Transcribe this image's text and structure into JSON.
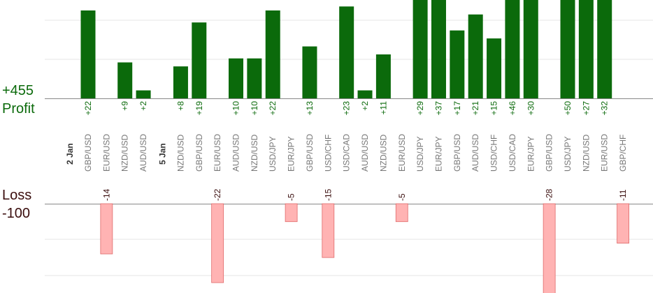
{
  "labels": {
    "profit_total": "+455",
    "profit": "Profit",
    "loss": "Loss",
    "loss_total": "-100"
  },
  "colors": {
    "profit_bar": "#0b6a0b",
    "profit_text": "#0b6a0b",
    "loss_bar_fill": "#ffb3b3",
    "loss_bar_stroke": "#e06a6a",
    "loss_text": "#3a0d0d",
    "axis": "#888888",
    "grid": "#e6e6e6"
  },
  "chart_data": {
    "type": "bar",
    "profit_ylim": [
      0,
      45
    ],
    "loss_ylim": [
      0,
      28
    ],
    "date_groups": [
      {
        "label": "2 Jan",
        "start_index": 0
      },
      {
        "label": "5 Jan",
        "start_index": 4
      }
    ],
    "trades": [
      {
        "pair": "GBP/USD",
        "value": 22
      },
      {
        "pair": "EUR/USD",
        "value": -14
      },
      {
        "pair": "NZD/USD",
        "value": 9
      },
      {
        "pair": "AUD/USD",
        "value": 2
      },
      {
        "pair": "NZD/USD",
        "value": 8
      },
      {
        "pair": "GBP/USD",
        "value": 19
      },
      {
        "pair": "EUR/USD",
        "value": -22
      },
      {
        "pair": "AUD/USD",
        "value": 10
      },
      {
        "pair": "NZD/USD",
        "value": 10
      },
      {
        "pair": "USD/JPY",
        "value": 22
      },
      {
        "pair": "EUR/JPY",
        "value": -5
      },
      {
        "pair": "GBP/USD",
        "value": 13
      },
      {
        "pair": "USD/CHF",
        "value": -15
      },
      {
        "pair": "USD/CAD",
        "value": 23
      },
      {
        "pair": "AUD/USD",
        "value": 2
      },
      {
        "pair": "NZD/USD",
        "value": 11
      },
      {
        "pair": "EUR/USD",
        "value": -5
      },
      {
        "pair": "USD/JPY",
        "value": 29
      },
      {
        "pair": "EUR/JPY",
        "value": 37
      },
      {
        "pair": "GBP/USD",
        "value": 17
      },
      {
        "pair": "AUD/USD",
        "value": 21
      },
      {
        "pair": "USD/CHF",
        "value": 15
      },
      {
        "pair": "USD/CAD",
        "value": 46
      },
      {
        "pair": "EUR/JPY",
        "value": 30
      },
      {
        "pair": "GBP/USD",
        "value": -28
      },
      {
        "pair": "USD/JPY",
        "value": 50
      },
      {
        "pair": "NZD/USD",
        "value": 27
      },
      {
        "pair": "EUR/USD",
        "value": 32
      },
      {
        "pair": "GBP/CHF",
        "value": -11
      }
    ]
  }
}
